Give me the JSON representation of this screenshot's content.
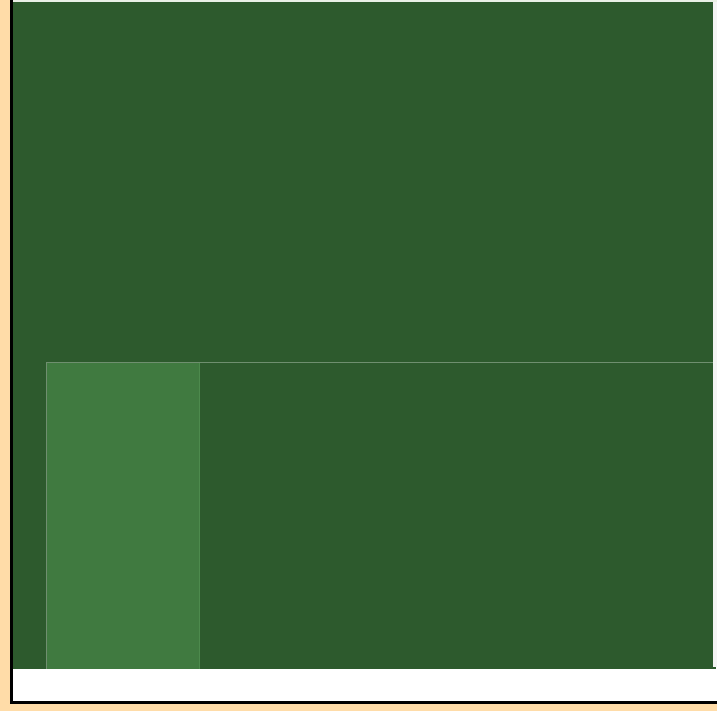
{
  "colors": {
    "outer_background": "#ffdca8",
    "frame": "#000000",
    "field": "#2d5a2d",
    "panel": "#2d5a2d",
    "panel_block": "#407a40",
    "strip": "#ffffff"
  }
}
